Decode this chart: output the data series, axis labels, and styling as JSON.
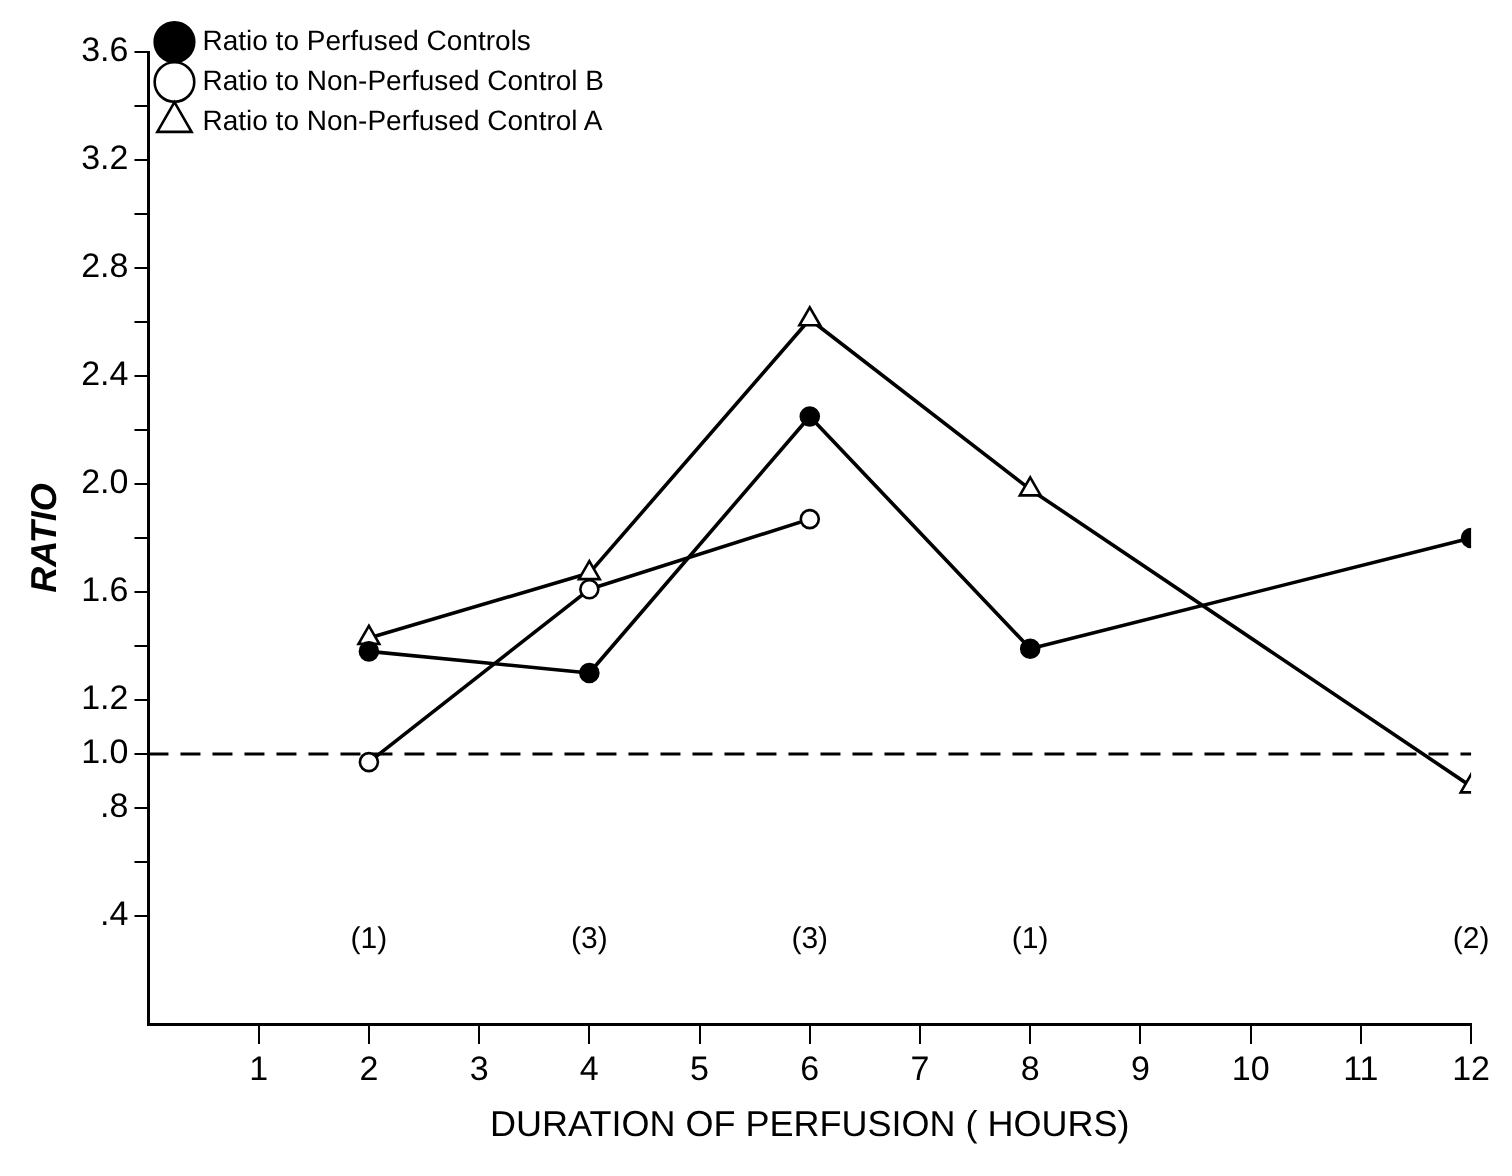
{
  "chart_data": {
    "type": "line",
    "xlabel": "DURATION OF PERFUSION ( HOURS)",
    "ylabel": "RATIO",
    "x": [
      2,
      4,
      6,
      8,
      12
    ],
    "series": [
      {
        "name": "Ratio to Perfused Controls",
        "color": "#000000",
        "marker": "circle",
        "values": [
          1.38,
          1.3,
          2.25,
          1.39,
          1.8
        ]
      },
      {
        "name": "Ratio to Non-Perfused Control B",
        "color": "#000000",
        "marker": "circle",
        "x": [
          2,
          4,
          6
        ],
        "values": [
          0.97,
          1.61,
          1.87
        ]
      },
      {
        "name": "Ratio to Non-Perfused Control A",
        "color": "#000000",
        "marker": "triangle",
        "values": [
          1.43,
          1.67,
          2.61,
          1.98,
          0.88
        ]
      }
    ],
    "xlim": [
      0,
      12
    ],
    "xticks": [
      1,
      2,
      3,
      4,
      5,
      6,
      7,
      8,
      9,
      10,
      11,
      12
    ],
    "ylim": [
      0,
      3.6
    ],
    "yticks": [
      {
        "value": 0.4,
        "label": ".4"
      },
      {
        "value": 0.6,
        "label": null
      },
      {
        "value": 0.8,
        "label": ".8"
      },
      {
        "value": 1.0,
        "label": "1.0"
      },
      {
        "value": 1.2,
        "label": "1.2"
      },
      {
        "value": 1.4,
        "label": null
      },
      {
        "value": 1.6,
        "label": "1.6"
      },
      {
        "value": 1.8,
        "label": null
      },
      {
        "value": 2.0,
        "label": "2.0"
      },
      {
        "value": 2.2,
        "label": null
      },
      {
        "value": 2.4,
        "label": "2.4"
      },
      {
        "value": 2.6,
        "label": null
      },
      {
        "value": 2.8,
        "label": "2.8"
      },
      {
        "value": 3.0,
        "label": null
      },
      {
        "value": 3.2,
        "label": "3.2"
      },
      {
        "value": 3.4,
        "label": null
      },
      {
        "value": 3.6,
        "label": "3.6"
      }
    ],
    "ref_lines": [
      {
        "axis": "y",
        "value": 1.0,
        "line_style": "dashed",
        "color": "#000000"
      }
    ],
    "annotations": [
      "(1)",
      "(3)",
      "(3)",
      "(1)",
      "(2)"
    ],
    "legend": "top left",
    "grid": false,
    "line_style": "solid"
  }
}
